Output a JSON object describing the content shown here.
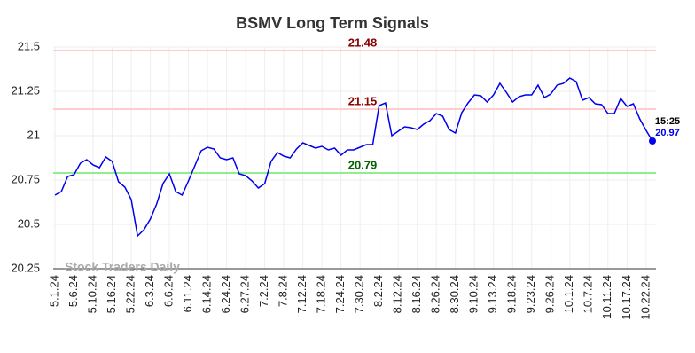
{
  "chart_data": {
    "type": "line",
    "title": "BSMV Long Term Signals",
    "watermark": "Stock Traders Daily",
    "categories": [
      "5.1.24",
      null,
      null,
      "5.6.24",
      null,
      null,
      "5.10.24",
      null,
      null,
      "5.16.24",
      null,
      null,
      "5.22.24",
      null,
      null,
      "6.3.24",
      null,
      null,
      "6.6.24",
      null,
      null,
      "6.11.24",
      null,
      null,
      "6.14.24",
      null,
      null,
      "6.24.24",
      null,
      null,
      "6.27.24",
      null,
      null,
      "7.2.24",
      null,
      null,
      "7.8.24",
      null,
      null,
      "7.12.24",
      null,
      null,
      "7.18.24",
      null,
      null,
      "7.24.24",
      null,
      null,
      "7.30.24",
      null,
      null,
      "8.2.24",
      null,
      null,
      "8.12.24",
      null,
      null,
      "8.16.24",
      null,
      null,
      "8.26.24",
      null,
      null,
      "8.30.24",
      null,
      null,
      "9.10.24",
      null,
      null,
      "9.13.24",
      null,
      null,
      "9.18.24",
      null,
      null,
      "9.23.24",
      null,
      null,
      "9.26.24",
      null,
      null,
      "10.1.24",
      null,
      null,
      "10.7.24",
      null,
      null,
      "10.11.24",
      null,
      null,
      "10.17.24",
      null,
      null,
      "10.22.24",
      null
    ],
    "values": [
      20.665,
      20.685,
      20.77,
      20.78,
      20.845,
      20.865,
      20.835,
      20.82,
      20.88,
      20.855,
      20.74,
      20.71,
      20.64,
      20.435,
      20.47,
      20.53,
      20.615,
      20.73,
      20.785,
      20.685,
      20.665,
      20.745,
      20.83,
      20.915,
      20.935,
      20.925,
      20.875,
      20.865,
      20.875,
      20.785,
      20.775,
      20.745,
      20.705,
      20.73,
      20.855,
      20.905,
      20.885,
      20.875,
      20.925,
      20.96,
      20.945,
      20.93,
      20.94,
      20.92,
      20.93,
      20.89,
      20.92,
      20.92,
      20.935,
      20.95,
      20.95,
      21.17,
      21.185,
      21.0,
      21.025,
      21.05,
      21.045,
      21.035,
      21.065,
      21.085,
      21.125,
      21.11,
      21.035,
      21.015,
      21.13,
      21.185,
      21.23,
      21.225,
      21.19,
      21.23,
      21.295,
      21.245,
      21.19,
      21.22,
      21.23,
      21.23,
      21.285,
      21.215,
      21.235,
      21.285,
      21.295,
      21.325,
      21.305,
      21.2,
      21.215,
      21.18,
      21.175,
      21.125,
      21.125,
      21.21,
      21.165,
      21.18,
      21.095,
      21.03,
      20.97
    ],
    "color": "#0000ee",
    "last_time": "15:25",
    "hlines": [
      {
        "value": 21.48,
        "color": "#ffcccc",
        "text_color": "#8b0000"
      },
      {
        "value": 21.15,
        "color": "#ffcccc",
        "text_color": "#8b0000"
      },
      {
        "value": 20.79,
        "color": "#90ee90",
        "text_color": "#006400"
      }
    ],
    "ylim": [
      20.25,
      21.5
    ],
    "yticks": [
      20.25,
      20.5,
      20.75,
      21,
      21.25,
      21.5
    ],
    "grid": true
  }
}
